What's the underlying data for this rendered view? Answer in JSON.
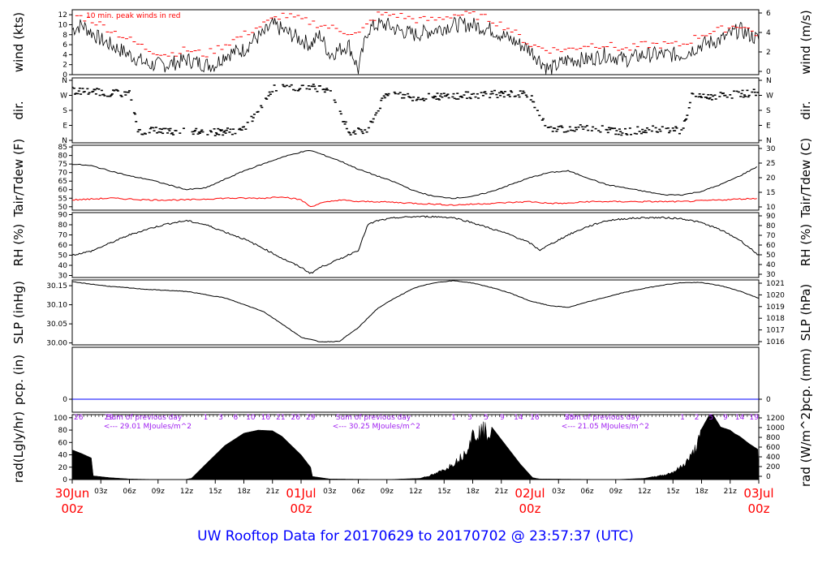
{
  "title": "UW Rooftop Data for 20170629  to  20170702 @ 23:57:37  (UTC)",
  "colors": {
    "series": "#000000",
    "peak": "#ff0000",
    "dewpoint": "#ff0000",
    "precip": "#0000ff",
    "title": "#0000ff",
    "annotation": "#a020f0",
    "date_labels": "#ff0000"
  },
  "x_axis": {
    "hour_ticks": [
      "03z",
      "06z",
      "09z",
      "12z",
      "15z",
      "18z",
      "21z",
      "03z",
      "06z",
      "09z",
      "12z",
      "15z",
      "18z",
      "21z",
      "03z",
      "06z",
      "09z",
      "12z",
      "15z",
      "18z",
      "21z"
    ],
    "day_labels": [
      {
        "date": "30Jun",
        "hour": "00z"
      },
      {
        "date": "01Jul",
        "hour": "00z"
      },
      {
        "date": "02Jul",
        "hour": "00z"
      },
      {
        "date": "03Jul",
        "hour": "00z"
      }
    ]
  },
  "panels": {
    "wind": {
      "left_label": "wind (kts)",
      "right_label": "wind (m/s)",
      "left_ticks": [
        "0",
        "2",
        "4",
        "6",
        "8",
        "10",
        "12"
      ],
      "right_ticks": [
        "0",
        "2",
        "4",
        "6"
      ],
      "annotation": "10 min. peak winds in red"
    },
    "dir": {
      "left_label": "dir.",
      "right_label": "dir.",
      "left_ticks": [
        "N",
        "E",
        "S",
        "W",
        "N"
      ],
      "right_ticks": [
        "N",
        "E",
        "S",
        "W",
        "N"
      ]
    },
    "temp": {
      "left_label": "Tair/Tdew (F)",
      "right_label": "Tair/Tdew (C)",
      "left_ticks": [
        "50",
        "55",
        "60",
        "65",
        "70",
        "75",
        "80",
        "85"
      ],
      "right_ticks": [
        "10",
        "15",
        "20",
        "25",
        "30"
      ]
    },
    "rh": {
      "left_label": "RH (%)",
      "right_label": "RH (%)",
      "left_ticks": [
        "30",
        "40",
        "50",
        "60",
        "70",
        "80",
        "90"
      ],
      "right_ticks": [
        "30",
        "40",
        "50",
        "60",
        "70",
        "80",
        "90"
      ]
    },
    "slp": {
      "left_label": "SLP (inHg)",
      "right_label": "SLP (hPa)",
      "left_ticks": [
        "30.00",
        "30.05",
        "30.10",
        "30.15"
      ],
      "right_ticks": [
        "1016",
        "1017",
        "1018",
        "1019",
        "1020",
        "1021"
      ]
    },
    "pcp": {
      "left_label": "pcp. (in)",
      "right_label": "pcp. (mm)",
      "left_ticks": [
        "0"
      ],
      "right_ticks": [
        "0"
      ]
    },
    "rad": {
      "left_label": "rad(Lgly/hr)",
      "right_label": "rad (W/m^2)",
      "left_ticks": [
        "0",
        "20",
        "40",
        "60",
        "80",
        "100"
      ],
      "right_ticks": [
        "0",
        "200",
        "400",
        "600",
        "800",
        "1000",
        "1200"
      ],
      "daily_sums": [
        {
          "line1": "Sum of previous day",
          "line2": "<--- 29.01 MJoules/m^2"
        },
        {
          "line1": "Sum of previous day",
          "line2": "<--- 30.25 MJoules/m^2"
        },
        {
          "line1": "Sum of previous day",
          "line2": "<--- 21.05 MJoules/m^2"
        }
      ],
      "sky_ticks_day1": [
        "1",
        "3",
        "6",
        "10",
        "16",
        "21",
        "26",
        "29"
      ],
      "sky_ticks_day2": [
        "1",
        "3",
        "5",
        "9",
        "14",
        "16"
      ],
      "sky_ticks_day3": [
        "1",
        "2",
        "5",
        "9",
        "14",
        "19"
      ],
      "left_edge_marks": [
        "26",
        "29",
        "25"
      ]
    }
  },
  "chart_data": {
    "type": "line",
    "x_unit": "hours since 30Jun 00z",
    "x_range": [
      0,
      72
    ],
    "panels": [
      {
        "name": "wind",
        "ylim": [
          0,
          13
        ],
        "series": [
          {
            "name": "wind",
            "x": [
              0,
              1,
              3,
              5,
              6,
              8,
              10,
              12,
              14,
              15,
              16,
              18,
              19,
              20,
              21,
              22,
              23,
              24,
              25,
              26,
              27,
              28,
              29,
              30,
              31,
              32,
              33,
              34,
              36,
              38,
              40,
              42,
              44,
              45,
              46,
              48,
              50,
              52,
              54,
              56,
              58,
              60,
              62,
              64,
              66,
              68,
              70,
              72
            ],
            "y": [
              9,
              10,
              7,
              5,
              4,
              2,
              2,
              3,
              2,
              2,
              4,
              5,
              7,
              8,
              10,
              9,
              8,
              7,
              6,
              8,
              4,
              5,
              6,
              1,
              9,
              10,
              10,
              9,
              8,
              9,
              10,
              10,
              9,
              8,
              7,
              5,
              1,
              3,
              3,
              4,
              3,
              4,
              4,
              4,
              6,
              7,
              9,
              7
            ]
          },
          {
            "name": "10 min. peak winds",
            "x": [
              0,
              2,
              4,
              6,
              8,
              10,
              12,
              14,
              16,
              18,
              20,
              22,
              24,
              26,
              28,
              30,
              32,
              34,
              36,
              38,
              40,
              42,
              44,
              46,
              48,
              50,
              52,
              54,
              56,
              58,
              60,
              62,
              64,
              66,
              68,
              70,
              72
            ],
            "y": [
              12,
              11,
              9,
              7,
              5,
              4,
              5,
              4,
              6,
              8,
              10,
              12,
              11,
              10,
              9,
              8,
              12,
              12,
              11,
              11,
              12,
              12,
              11,
              9,
              6,
              5,
              5,
              6,
              6,
              5,
              6,
              6,
              6,
              8,
              9,
              10,
              8
            ]
          }
        ]
      },
      {
        "name": "dir",
        "ylim": [
          0,
          360
        ],
        "y_ticks_meaning": [
          "N",
          "E",
          "S",
          "W",
          "N"
        ],
        "series": [
          {
            "name": "dir",
            "x": [
              0,
              3,
              6,
              7,
              9,
              12,
              15,
              18,
              21,
              24,
              27,
              29,
              31,
              33,
              36,
              40,
              44,
              47,
              48,
              50,
              52,
              55,
              58,
              61,
              64,
              65,
              66,
              68,
              70,
              72
            ],
            "y": [
              290,
              280,
              270,
              60,
              70,
              60,
              60,
              70,
              300,
              310,
              300,
              60,
              70,
              280,
              250,
              260,
              270,
              270,
              260,
              70,
              80,
              80,
              60,
              80,
              70,
              260,
              250,
              260,
              270,
              280
            ]
          }
        ]
      },
      {
        "name": "temp",
        "ylim": [
          48,
          86
        ],
        "series": [
          {
            "name": "Tair",
            "x": [
              0,
              2,
              4,
              6,
              8,
              10,
              12,
              14,
              16,
              18,
              20,
              22,
              24,
              25,
              26,
              28,
              30,
              32,
              34,
              36,
              38,
              40,
              42,
              44,
              46,
              48,
              50,
              52,
              54,
              56,
              58,
              60,
              62,
              64,
              66,
              68,
              70,
              72
            ],
            "y": [
              75,
              74,
              71,
              68,
              66,
              63,
              60,
              61,
              66,
              71,
              75,
              79,
              82,
              83,
              81,
              77,
              72,
              68,
              64,
              59,
              56,
              55,
              56,
              59,
              63,
              67,
              70,
              71,
              67,
              63,
              61,
              59,
              57,
              57,
              59,
              63,
              68,
              74
            ]
          },
          {
            "name": "Tdew",
            "x": [
              0,
              4,
              8,
              12,
              16,
              20,
              22,
              24,
              25,
              26,
              28,
              30,
              32,
              36,
              40,
              44,
              48,
              50,
              52,
              54,
              56,
              60,
              64,
              68,
              72
            ],
            "y": [
              54,
              55,
              54,
              54,
              55,
              55,
              56,
              54,
              50,
              52,
              54,
              53,
              53,
              52,
              51,
              52,
              53,
              52,
              52,
              53,
              53,
              53,
              53,
              54,
              55
            ]
          }
        ]
      },
      {
        "name": "rh",
        "ylim": [
          28,
          92
        ],
        "series": [
          {
            "name": "RH",
            "x": [
              0,
              2,
              4,
              6,
              8,
              10,
              12,
              14,
              16,
              18,
              20,
              22,
              24,
              25,
              26,
              28,
              30,
              31,
              32,
              34,
              36,
              38,
              40,
              42,
              44,
              46,
              48,
              49,
              50,
              52,
              54,
              56,
              58,
              60,
              62,
              64,
              66,
              68,
              70,
              72
            ],
            "y": [
              50,
              54,
              62,
              70,
              76,
              81,
              84,
              80,
              73,
              66,
              57,
              47,
              38,
              32,
              38,
              46,
              55,
              80,
              84,
              87,
              88,
              88,
              87,
              82,
              76,
              70,
              62,
              55,
              60,
              70,
              78,
              84,
              86,
              87,
              87,
              86,
              82,
              75,
              65,
              50
            ]
          }
        ]
      },
      {
        "name": "slp",
        "ylim": [
          29.995,
          30.165
        ],
        "series": [
          {
            "name": "SLP",
            "x": [
              0,
              4,
              8,
              12,
              16,
              20,
              22,
              24,
              26,
              28,
              30,
              32,
              34,
              36,
              38,
              40,
              42,
              44,
              46,
              48,
              50,
              52,
              54,
              56,
              58,
              60,
              62,
              64,
              66,
              68,
              70,
              72
            ],
            "y": [
              30.16,
              30.148,
              30.14,
              30.135,
              30.118,
              30.083,
              30.05,
              30.015,
              30.003,
              30.004,
              30.04,
              30.09,
              30.12,
              30.145,
              30.158,
              30.163,
              30.157,
              30.145,
              30.13,
              30.11,
              30.098,
              30.093,
              30.107,
              30.12,
              30.133,
              30.143,
              30.152,
              30.158,
              30.158,
              30.15,
              30.136,
              30.117
            ]
          }
        ]
      },
      {
        "name": "pcp",
        "ylim": [
          -0.1,
          0.4
        ],
        "series": [
          {
            "name": "pcp",
            "x": [
              0,
              72
            ],
            "y": [
              0,
              0
            ]
          }
        ]
      },
      {
        "name": "rad",
        "ylim": [
          0,
          105
        ],
        "series": [
          {
            "name": "rad",
            "x": [
              0,
              1,
              2,
              2.2,
              4,
              6,
              9,
              11.8,
              12.5,
              14,
              16,
              18,
              19.5,
              21,
              22,
              23,
              24,
              25,
              25.2,
              27,
              33,
              36.5,
              38,
              39,
              40,
              41,
              42,
              43,
              44,
              45,
              46,
              47,
              48,
              48.3,
              49,
              57,
              60,
              62,
              63,
              64,
              65,
              66,
              67,
              68,
              69,
              69.5,
              70,
              71,
              72
            ],
            "y": [
              48,
              42,
              35,
              6,
              3,
              1,
              0,
              0,
              2,
              25,
              55,
              75,
              80,
              79,
              70,
              55,
              40,
              20,
              5,
              1,
              0,
              2,
              10,
              18,
              30,
              45,
              82,
              90,
              85,
              65,
              45,
              25,
              8,
              3,
              1,
              0,
              2,
              8,
              14,
              25,
              45,
              82,
              110,
              85,
              80,
              74,
              70,
              58,
              48
            ]
          }
        ]
      }
    ]
  }
}
